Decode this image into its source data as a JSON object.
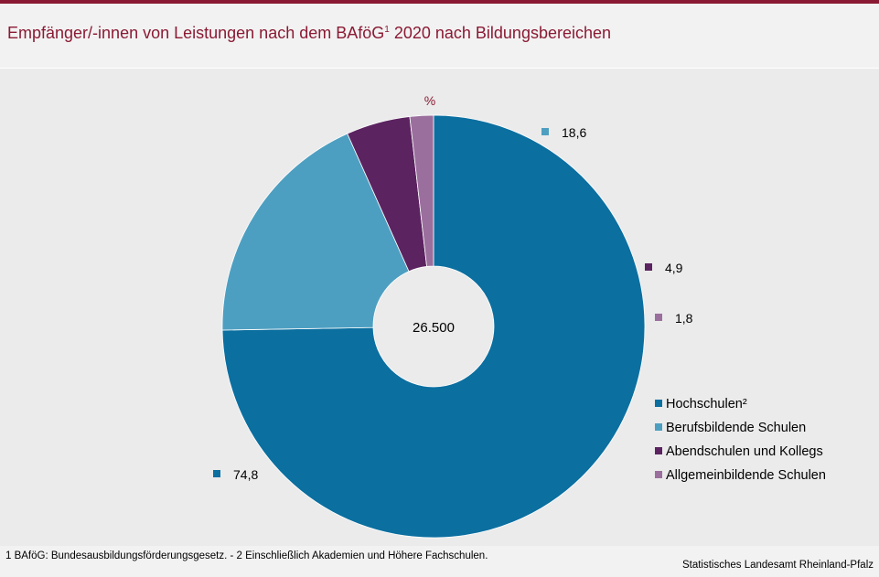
{
  "title": {
    "main": "Empfänger/-innen von Leistungen nach dem BAföG",
    "sup": "1",
    "rest": " 2020 nach Bildungsbereichen"
  },
  "chart_data": {
    "type": "pie",
    "unit_label": "%",
    "center_label": "26.500",
    "slices": [
      {
        "name": "Hochschulen²",
        "value": 74.8,
        "label": "74,8",
        "color": "#0b6fa0"
      },
      {
        "name": "Berufsbildende Schulen",
        "value": 18.6,
        "label": "18,6",
        "color": "#4d9fc1"
      },
      {
        "name": "Abendschulen und Kollegs",
        "value": 4.9,
        "label": "4,9",
        "color": "#5b2360"
      },
      {
        "name": "Allgemeinbildende Schulen",
        "value": 1.8,
        "label": "1,8",
        "color": "#9b6f9d"
      }
    ],
    "legend_position": "right"
  },
  "footnote": "1 BAföG: Bundesausbildungsförderungsgesetz.  - 2 Einschließlich Akademien und Höhere Fachschulen.",
  "source": "Statistisches Landesamt Rheinland-Pfalz"
}
